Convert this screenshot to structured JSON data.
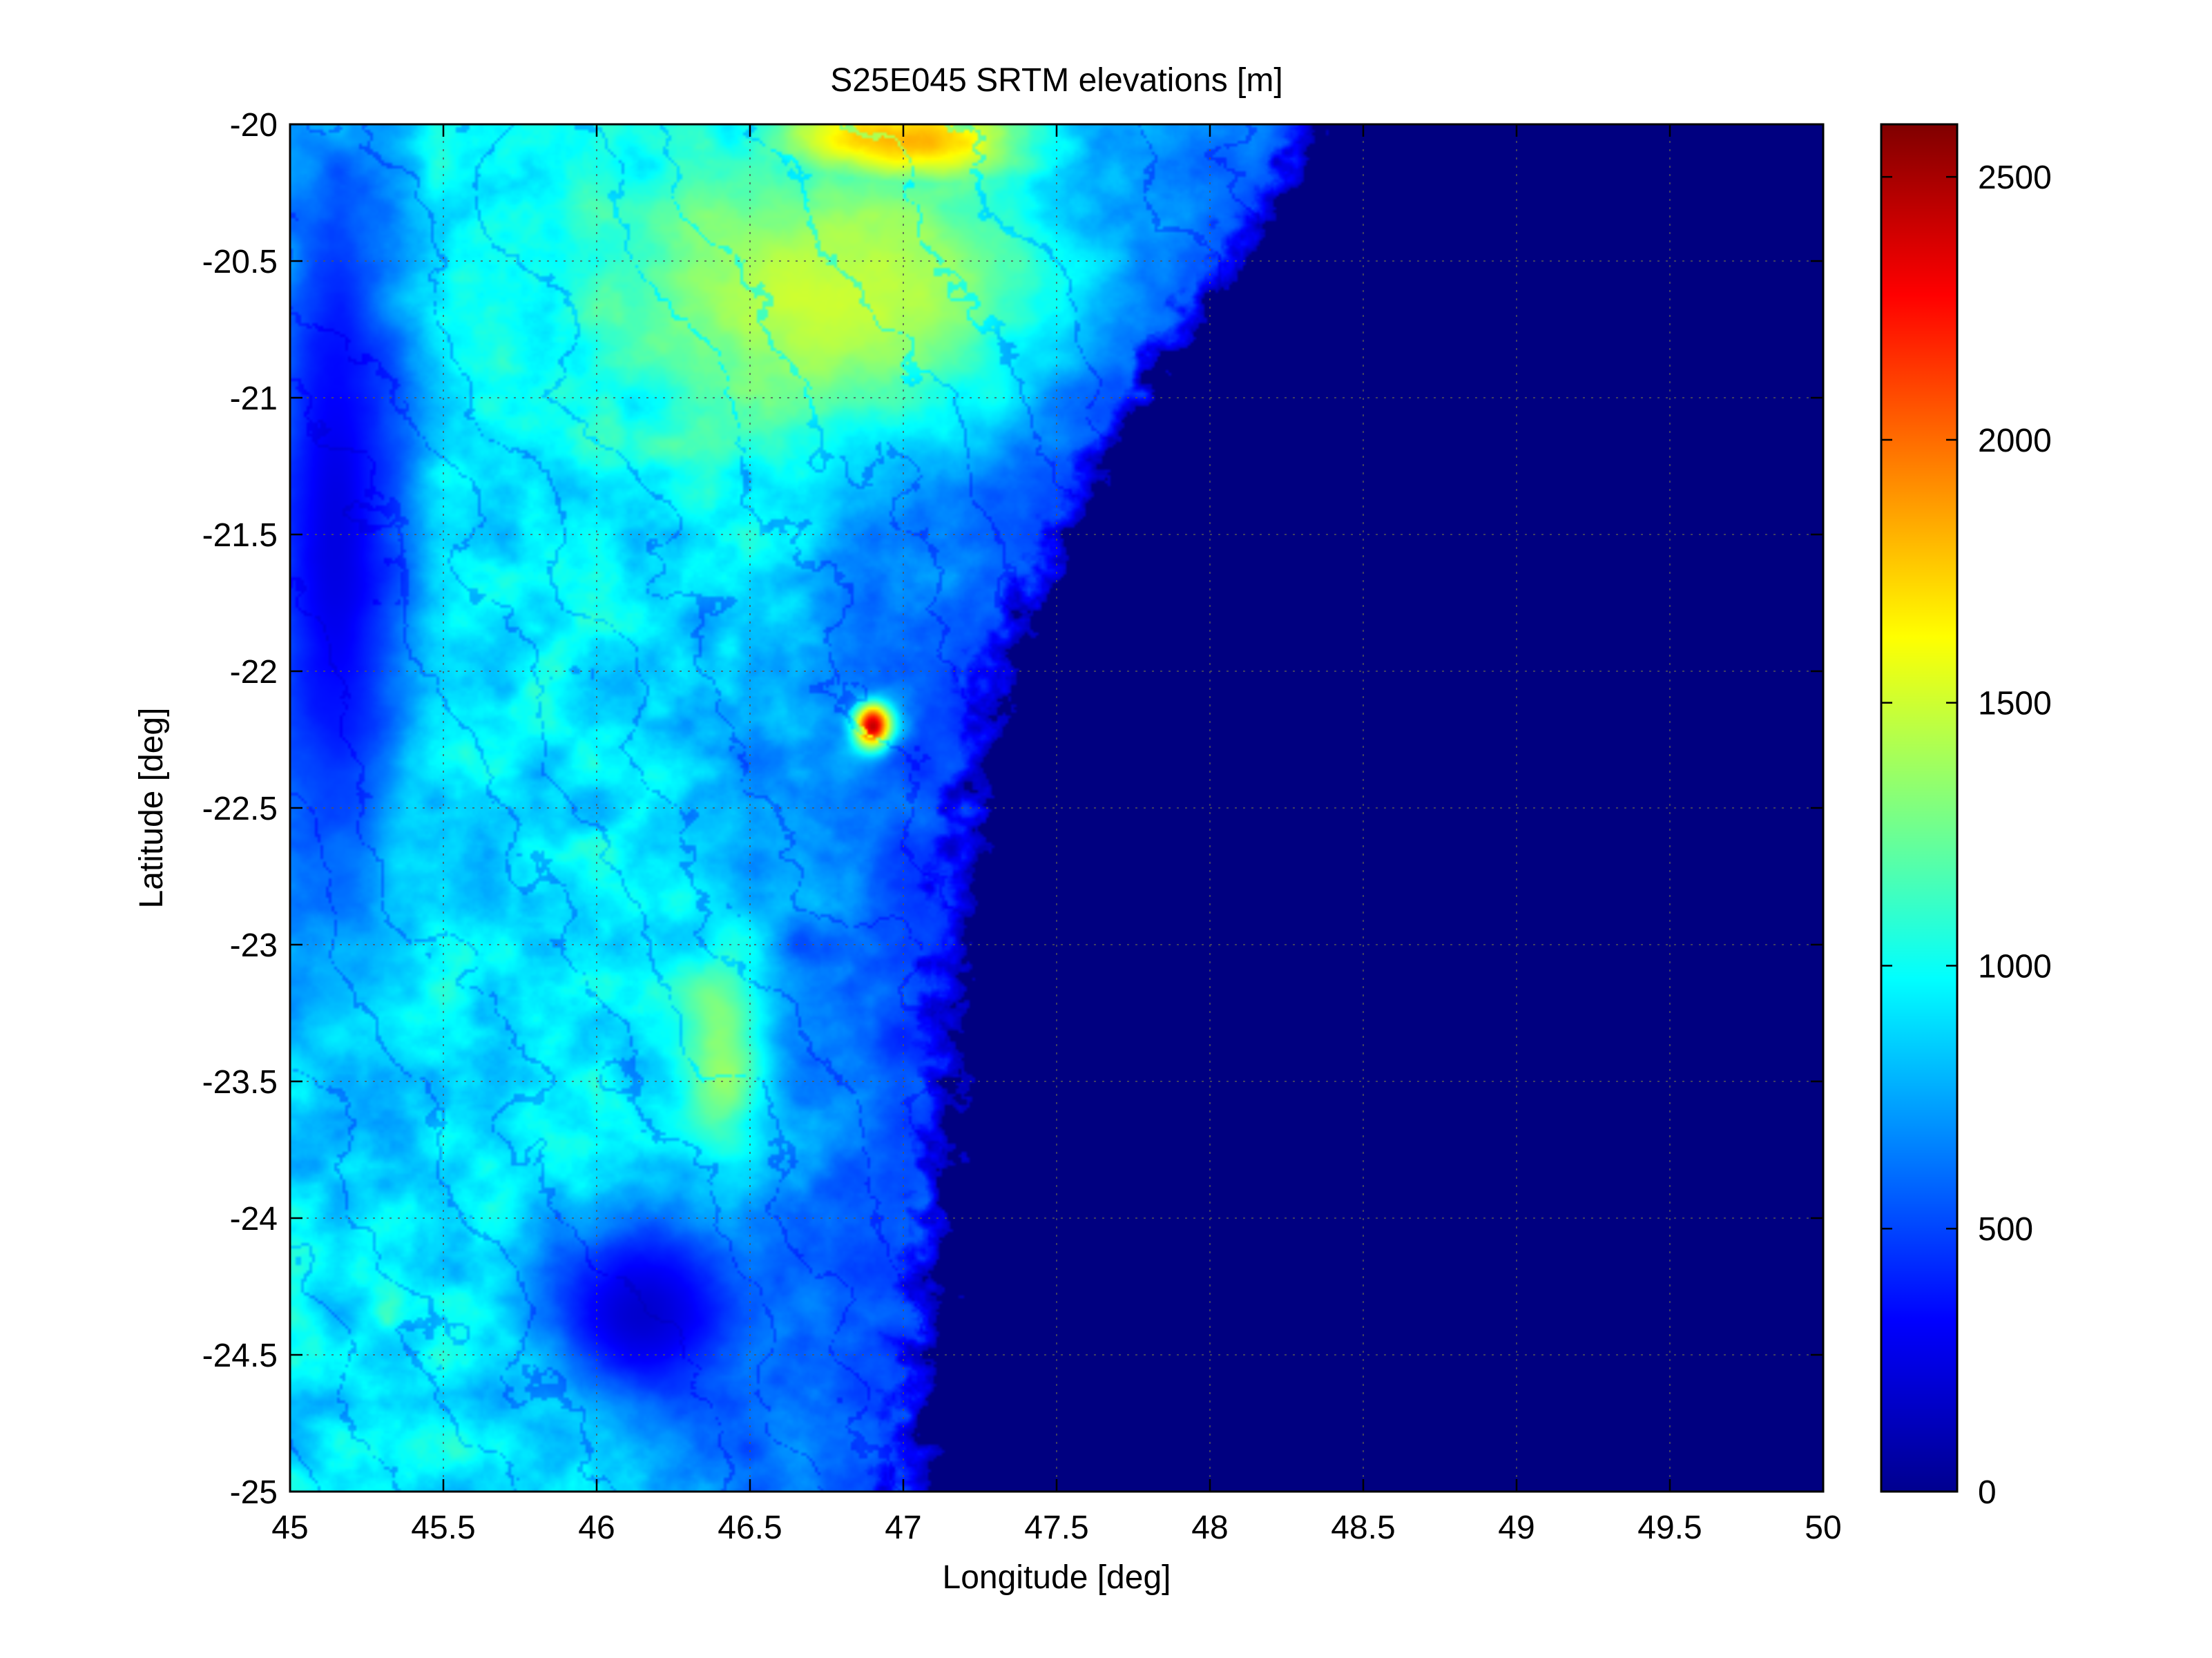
{
  "chart_data": {
    "type": "heatmap",
    "title": "S25E045 SRTM elevations [m]",
    "xlabel": "Longitude [deg]",
    "ylabel": "Latitude [deg]",
    "xlim": [
      45,
      50
    ],
    "ylim": [
      -25,
      -20
    ],
    "xticks": [
      45,
      45.5,
      46,
      46.5,
      47,
      47.5,
      48,
      48.5,
      49,
      49.5,
      50
    ],
    "xtick_labels": [
      "45",
      "45.5",
      "46",
      "46.5",
      "47",
      "47.5",
      "48",
      "48.5",
      "49",
      "49.5",
      "50"
    ],
    "yticks": [
      -20,
      -20.5,
      -21,
      -21.5,
      -22,
      -22.5,
      -23,
      -23.5,
      -24,
      -24.5,
      -25
    ],
    "ytick_labels": [
      "-20",
      "-20.5",
      "-21",
      "-21.5",
      "-22",
      "-22.5",
      "-23",
      "-23.5",
      "-24",
      "-24.5",
      "-25"
    ],
    "grid": true,
    "colormap": "jet",
    "colorbar": {
      "range": [
        0,
        2600
      ],
      "ticks": [
        0,
        500,
        1000,
        1500,
        2000,
        2500
      ],
      "tick_labels": [
        "0",
        "500",
        "1000",
        "1500",
        "2000",
        "2500"
      ]
    },
    "land_profile": [
      {
        "lat": -20.0,
        "coast_lon": 48.4
      },
      {
        "lat": -20.5,
        "coast_lon": 48.1
      },
      {
        "lat": -21.0,
        "coast_lon": 47.8
      },
      {
        "lat": -21.5,
        "coast_lon": 47.55
      },
      {
        "lat": -22.0,
        "coast_lon": 47.35
      },
      {
        "lat": -22.5,
        "coast_lon": 47.25
      },
      {
        "lat": -23.0,
        "coast_lon": 47.2
      },
      {
        "lat": -23.5,
        "coast_lon": 47.18
      },
      {
        "lat": -24.0,
        "coast_lon": 47.15
      },
      {
        "lat": -24.5,
        "coast_lon": 47.1
      },
      {
        "lat": -25.0,
        "coast_lon": 47.05
      }
    ],
    "features": [
      {
        "kind": "ocean",
        "elevation": 0
      },
      {
        "kind": "plateau",
        "lon": 46.8,
        "lat": -20.6,
        "elevation": 1500,
        "spread_lon": 0.7,
        "spread_lat": 0.5
      },
      {
        "kind": "plateau",
        "lon": 47.0,
        "lat": -20.05,
        "elevation": 1900,
        "spread_lon": 0.4,
        "spread_lat": 0.15
      },
      {
        "kind": "peak",
        "lon": 46.9,
        "lat": -22.2,
        "elevation": 2500,
        "spread_lon": 0.06,
        "spread_lat": 0.08
      },
      {
        "kind": "ridge",
        "lon": 46.4,
        "lat": -23.4,
        "elevation": 1400,
        "spread_lon": 0.15,
        "spread_lat": 0.4
      },
      {
        "kind": "basin",
        "lon": 46.15,
        "lat": -24.35,
        "elevation": 200,
        "spread_lon": 0.35,
        "spread_lat": 0.35
      },
      {
        "kind": "lowland",
        "lon": 45.15,
        "lat": -21.5,
        "elevation": 250,
        "spread_lon": 0.25,
        "spread_lat": 1.5
      }
    ]
  }
}
